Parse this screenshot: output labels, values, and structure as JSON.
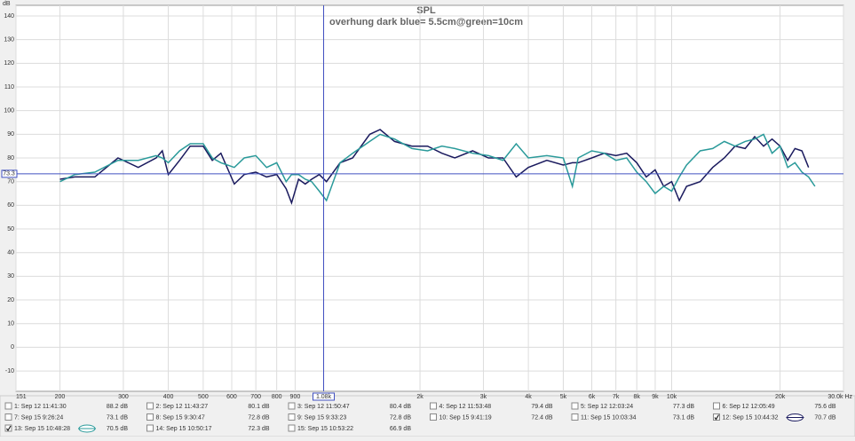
{
  "chart_data": {
    "type": "line",
    "title": "SPL",
    "subtitle": "overhung dark blue= 5.5cm@green=10cm",
    "y_label": "dB",
    "log_x": true,
    "grid": true,
    "xlim": [
      151,
      30000
    ],
    "ylim": [
      -18.6,
      144.5
    ],
    "xticks": [
      {
        "value": 151,
        "label": "151"
      },
      200,
      300,
      400,
      500,
      600,
      700,
      800,
      900,
      {
        "value": 2000,
        "label": "2k"
      },
      {
        "value": 3000,
        "label": "3k"
      },
      {
        "value": 4000,
        "label": "4k"
      },
      {
        "value": 5000,
        "label": "5k"
      },
      {
        "value": 6000,
        "label": "6k"
      },
      {
        "value": 7000,
        "label": "7k"
      },
      {
        "value": 8000,
        "label": "8k"
      },
      {
        "value": 9000,
        "label": "9k"
      },
      {
        "value": 10000,
        "label": "10k"
      },
      {
        "value": 20000,
        "label": "20k"
      },
      {
        "value": 30000,
        "label": "30.0k Hz"
      }
    ],
    "yticks": [
      -10,
      0,
      10,
      20,
      30,
      40,
      50,
      60,
      70,
      80,
      90,
      100,
      110,
      120,
      130,
      140
    ],
    "cursor_x": {
      "value": 1080,
      "label": "1.08k"
    },
    "cursor_y": {
      "value": 73.3,
      "label": "73.3"
    },
    "x": [
      200,
      220,
      250,
      290,
      330,
      370,
      385,
      400,
      430,
      460,
      500,
      530,
      560,
      610,
      650,
      700,
      750,
      800,
      850,
      880,
      920,
      960,
      1000,
      1050,
      1100,
      1200,
      1300,
      1450,
      1550,
      1700,
      1900,
      2100,
      2300,
      2500,
      2800,
      3100,
      3400,
      3700,
      4000,
      4500,
      5000,
      5300,
      5500,
      6000,
      6500,
      7000,
      7500,
      8000,
      8500,
      9000,
      9500,
      10000,
      10500,
      11000,
      12000,
      13000,
      14000,
      15000,
      16000,
      17000,
      18000,
      19000,
      20000,
      21000,
      22000,
      23000,
      24000,
      25000
    ],
    "series": [
      {
        "name": "1: Sep 12 11:41:30",
        "level": "88.2 dB",
        "color": "#c02020",
        "checked": false
      },
      {
        "name": "2: Sep 12 11:43:27",
        "level": "80.1 dB",
        "color": "#2a8a2a",
        "checked": false
      },
      {
        "name": "3: Sep 12 11:50:47",
        "level": "80.4 dB",
        "color": "#4040c0",
        "checked": false
      },
      {
        "name": "4: Sep 12 11:53:48",
        "level": "79.4 dB",
        "color": "#a040a0",
        "checked": false
      },
      {
        "name": "5: Sep 12 12:03:24",
        "level": "77.3 dB",
        "color": "#208080",
        "checked": false
      },
      {
        "name": "6: Sep 12 12:05:49",
        "level": "75.6 dB",
        "color": "#d09020",
        "checked": false
      },
      {
        "name": "7: Sep 15 9:26:24",
        "level": "73.1 dB",
        "color": "#30a060",
        "checked": false
      },
      {
        "name": "8: Sep 15 9:30:47",
        "level": "72.8 dB",
        "color": "#a040c0",
        "checked": false
      },
      {
        "name": "9: Sep 15 9:33:23",
        "level": "72.8 dB",
        "color": "#c04080",
        "checked": false
      },
      {
        "name": "10: Sep 15 9:41:19",
        "level": "72.4 dB",
        "color": "#3090c0",
        "checked": false
      },
      {
        "name": "11: Sep 15 10:03:34",
        "level": "73.1 dB",
        "color": "#a02020",
        "checked": false
      },
      {
        "name": "12: Sep 15 10:44:32",
        "level": "70.7 dB",
        "color": "#1a1a5e",
        "checked": true,
        "values": [
          71,
          72,
          72,
          80,
          76,
          80,
          83,
          73,
          79,
          85,
          85,
          79,
          82,
          69,
          73,
          74,
          72,
          73,
          67,
          61,
          71,
          69,
          71,
          73,
          70,
          78,
          80,
          90,
          92,
          87,
          85,
          85,
          82,
          80,
          83,
          80,
          80,
          72,
          76,
          79,
          77,
          78,
          78,
          80,
          82,
          81,
          82,
          78,
          72,
          75,
          68,
          70,
          62,
          68,
          70,
          76,
          80,
          85,
          84,
          89,
          85,
          88,
          85,
          79,
          84,
          83,
          76,
          null
        ]
      },
      {
        "name": "13: Sep 15 10:48:28",
        "level": "70.5 dB",
        "color": "#2a9a9a",
        "checked": true,
        "values": [
          70,
          73,
          74,
          79,
          79,
          81,
          80,
          78,
          83,
          86,
          86,
          80,
          78,
          76,
          80,
          81,
          76,
          78,
          70,
          73,
          73,
          71,
          70,
          66,
          62,
          78,
          82,
          87,
          90,
          88,
          84,
          83,
          85,
          84,
          82,
          81,
          79,
          86,
          80,
          81,
          80,
          68,
          80,
          83,
          82,
          79,
          80,
          74,
          70,
          65,
          68,
          66,
          72,
          77,
          83,
          84,
          87,
          85,
          87,
          88,
          90,
          82,
          85,
          76,
          78,
          74,
          72,
          68
        ]
      },
      {
        "name": "14: Sep 15 10:50:17",
        "level": "72.3 dB",
        "color": "#a0a020",
        "checked": false
      },
      {
        "name": "15: Sep 15 10:53:22",
        "level": "66.9 dB",
        "color": "#206040",
        "checked": false
      }
    ]
  }
}
